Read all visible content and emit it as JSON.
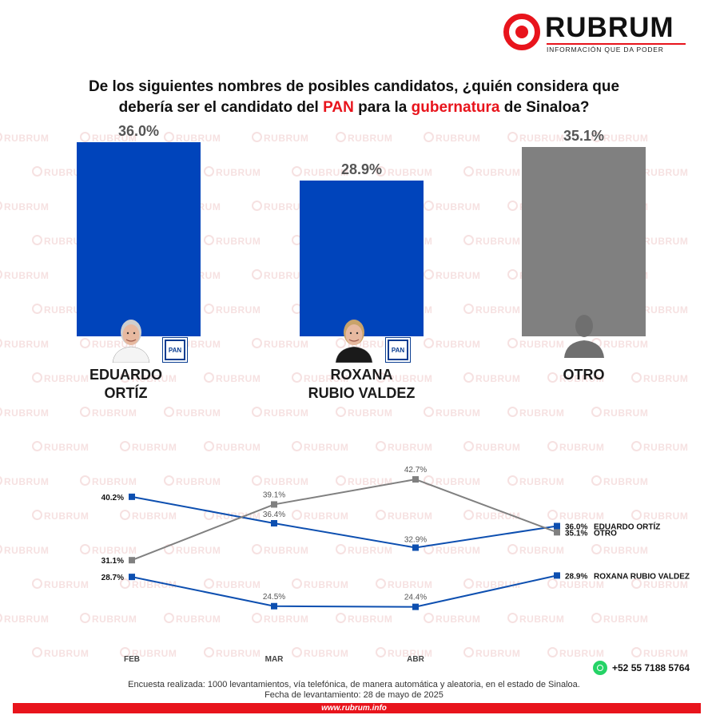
{
  "brand": {
    "name": "RUBRUM",
    "tagline": "INFORMACIÓN QUE DA PODER",
    "watermark": "RUBRUM",
    "red": "#e8141c"
  },
  "title": {
    "part1": "De los siguientes nombres de posibles candidatos, ¿quién considera que",
    "part2": "debería ser el candidato del ",
    "highlight1": "PAN",
    "part3": " para la ",
    "highlight2": "gubernatura",
    "part4": " de Sinaloa?"
  },
  "chart_data": [
    {
      "type": "bar",
      "categories": [
        "EDUARDO ORTÍZ",
        "ROXANA RUBIO VALDEZ",
        "OTRO"
      ],
      "values": [
        36.0,
        28.9,
        35.1
      ],
      "value_labels": [
        "36.0%",
        "28.9%",
        "35.1%"
      ],
      "name_lines": [
        [
          "EDUARDO",
          "ORTÍZ"
        ],
        [
          "ROXANA",
          "RUBIO VALDEZ"
        ],
        [
          "OTRO"
        ]
      ],
      "colors": [
        "#0044bb",
        "#0044bb",
        "#808080"
      ],
      "party_badges": [
        "PAN",
        "PAN",
        ""
      ],
      "icons": [
        "candidate-photo",
        "candidate-photo",
        "person-silhouette"
      ],
      "ylim": [
        0,
        40
      ]
    },
    {
      "type": "line",
      "x": [
        "FEB",
        "MAR",
        "ABR",
        "MAY"
      ],
      "x_tick_labels": [
        "FEB",
        "MAR",
        "ABR",
        ""
      ],
      "ylim": [
        20,
        45
      ],
      "series": [
        {
          "name": "EDUARDO ORTÍZ",
          "color": "#0d4fb0",
          "values": [
            40.2,
            36.4,
            32.9,
            36.0
          ],
          "labels": [
            "40.2%",
            "36.4%",
            "32.9%",
            "36.0%"
          ]
        },
        {
          "name": "OTRO",
          "color": "#808080",
          "values": [
            31.1,
            39.1,
            42.7,
            35.1
          ],
          "labels": [
            "31.1%",
            "39.1%",
            "42.7%",
            "35.1%"
          ]
        },
        {
          "name": "ROXANA RUBIO VALDEZ",
          "color": "#0d4fb0",
          "values": [
            28.7,
            24.5,
            24.4,
            28.9
          ],
          "labels": [
            "28.7%",
            "24.5%",
            "24.4%",
            "28.9%"
          ]
        }
      ]
    }
  ],
  "footer": {
    "phone": "+52 55 7188 5764",
    "phone_icon": "whatsapp-icon",
    "note": "Encuesta realizada: 1000 levantamientos, vía telefónica, de manera automática y aleatoria, en el estado de Sinaloa.",
    "date": "Fecha de levantamiento: 28 de mayo de 2025",
    "website": "www.rubrum.info"
  }
}
